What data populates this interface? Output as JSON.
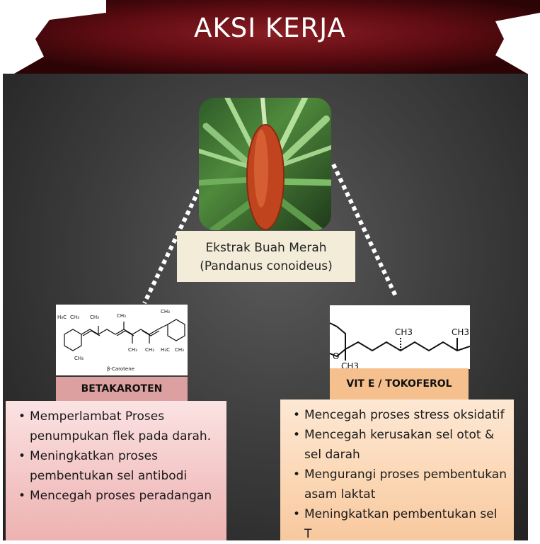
{
  "title": "AKSI KERJA",
  "source": {
    "caption_line1": "Ekstrak Buah Merah",
    "caption_line2": "(Pandanus conoideus)"
  },
  "left": {
    "label": "BETAKAROTEN",
    "molecule_caption": "β-Carotene",
    "items": [
      "Memperlambat Proses penumpukan flek pada darah.",
      "Meningkatkan proses pembentukan sel antibodi",
      "Mencegah proses peradangan"
    ]
  },
  "right": {
    "label": "VIT E / TOKOFEROL",
    "molecule_groups": [
      "CH3",
      "CH3",
      "CH3",
      "O"
    ],
    "items": [
      "Mencegah proses stress oksidatif",
      "Mencegah kerusakan sel otot & sel darah",
      "Mengurangi proses pembentukan asam laktat",
      "Meningkatkan pembentukan sel T"
    ]
  },
  "colors": {
    "banner": "#5e0c12",
    "left_label": "#dca0a0",
    "right_label": "#f5c08e",
    "board": "#3e3e3e"
  }
}
